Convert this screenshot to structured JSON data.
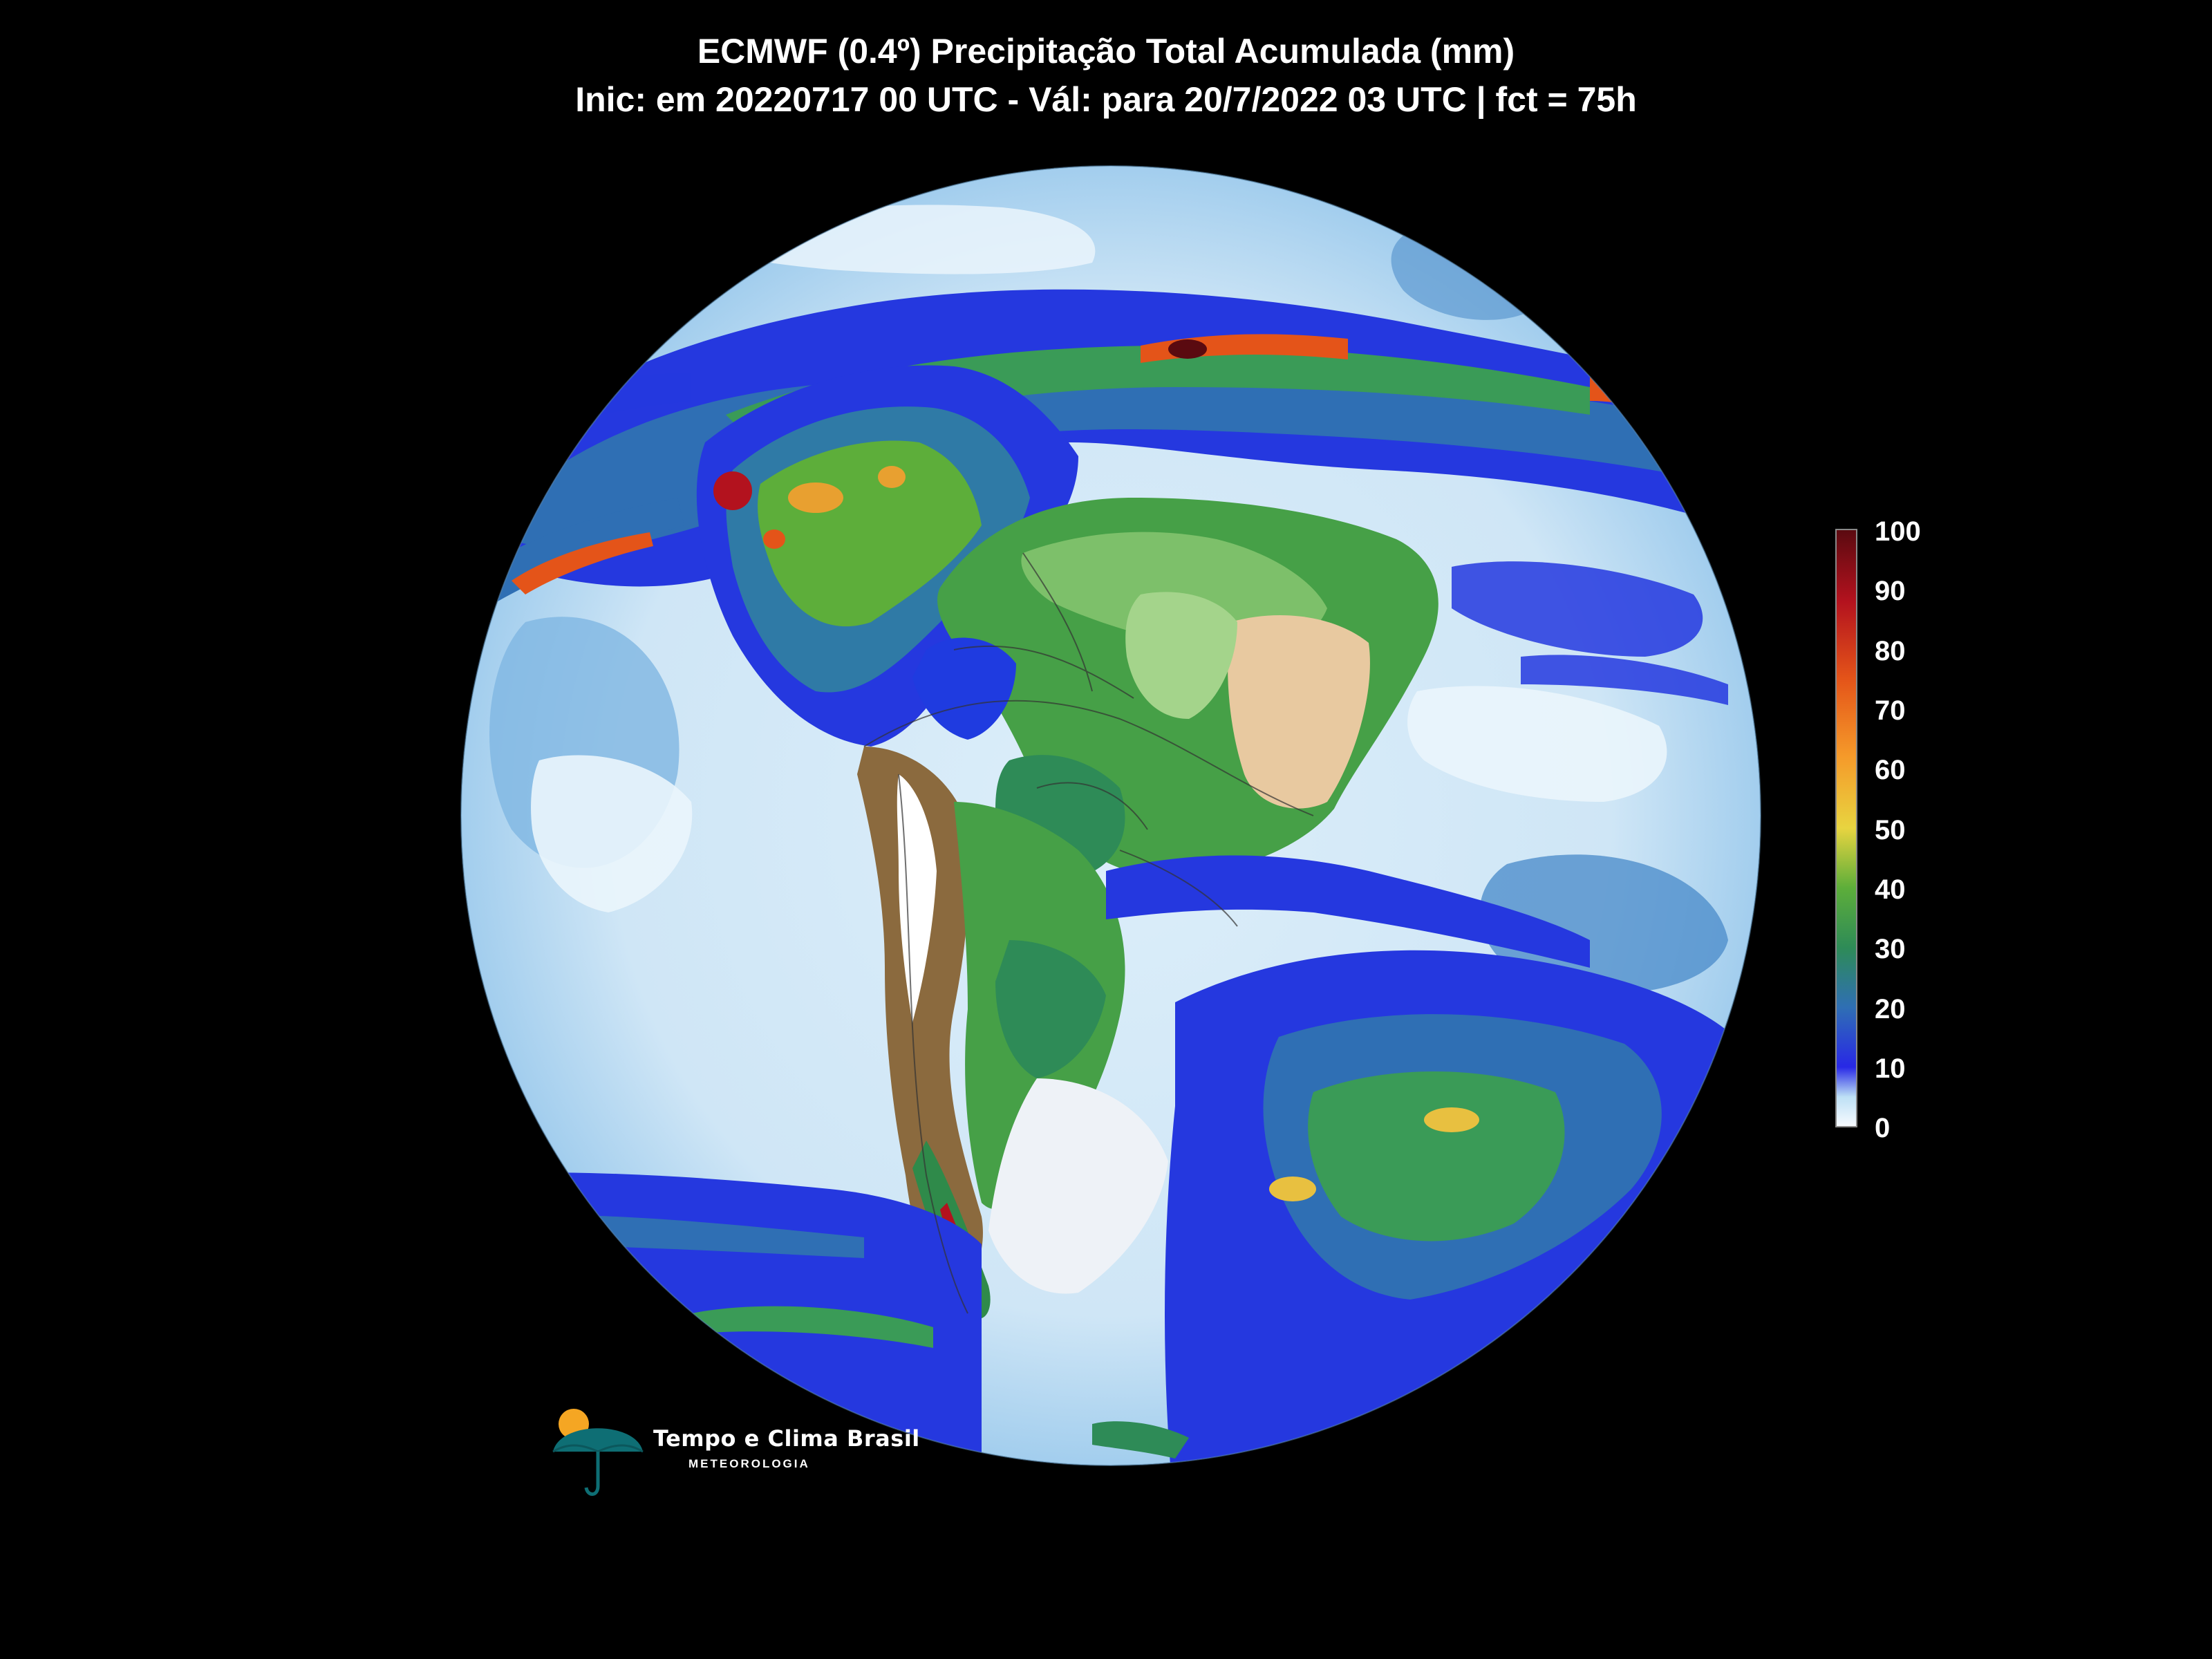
{
  "title": {
    "line1": "ECMWF (0.4º) Precipitação Total Acumulada (mm)",
    "line2": "Inic: em 20220717 00 UTC - Vál: para 20/7/2022 03 UTC | fct = 75h"
  },
  "colorbar": {
    "labels": [
      "100",
      "90",
      "80",
      "70",
      "60",
      "50",
      "40",
      "30",
      "20",
      "10",
      "0"
    ],
    "colors": [
      "#f8fbff",
      "#bde0f5",
      "#2828e6",
      "#2f6fb4",
      "#2e8b57",
      "#5dae3a",
      "#e8d440",
      "#f59a2a",
      "#e45419",
      "#b3121e",
      "#5a0a10"
    ],
    "unit": "mm"
  },
  "logo": {
    "name": "Tempo e Clima Brasil",
    "subtitle": "METEOROLOGIA"
  },
  "colors": {
    "background": "#000000",
    "ocean_light": "#e8f3fb",
    "ocean_mid": "#3a7cc4",
    "rain_blue": "#1f3be0",
    "land_green": "#46a047",
    "andes": "#8b6a3e",
    "heavy_rain": "#b3121e"
  }
}
